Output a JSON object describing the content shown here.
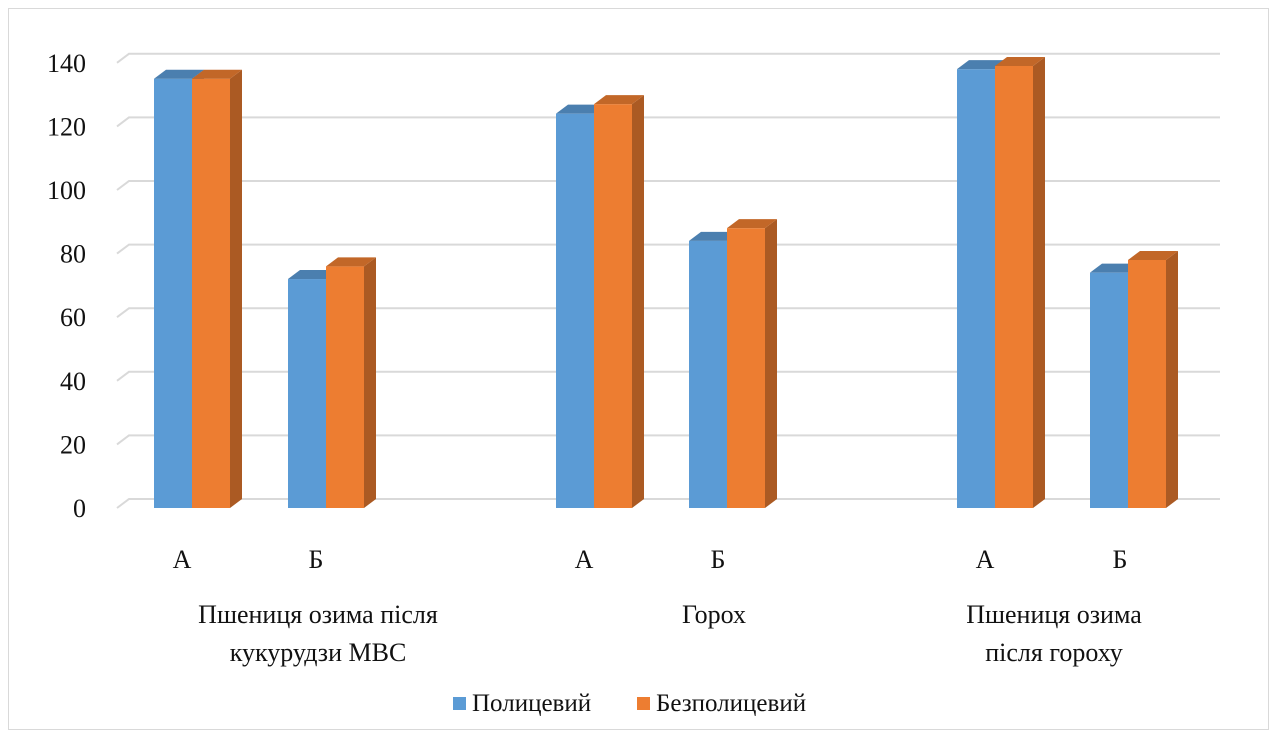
{
  "chart_data": {
    "type": "bar",
    "style": "3d-clustered-column",
    "groups": [
      {
        "label_lines": [
          "Пшениця озима після",
          "кукурудзи МВС"
        ],
        "categories": [
          "А",
          "Б"
        ]
      },
      {
        "label_lines": [
          "Горох"
        ],
        "categories": [
          "А",
          "Б"
        ]
      },
      {
        "label_lines": [
          "Пшениця озима",
          "після гороху"
        ],
        "categories": [
          "А",
          "Б"
        ]
      }
    ],
    "series": [
      {
        "name": "Полицевий",
        "color": "#5b9bd5",
        "values": [
          135,
          72,
          124,
          84,
          138,
          74
        ]
      },
      {
        "name": "Безполицевий",
        "color": "#ed7d31",
        "values": [
          135,
          76,
          127,
          88,
          139,
          78
        ]
      }
    ],
    "ylim": [
      0,
      140
    ],
    "yticks": [
      0,
      20,
      40,
      60,
      80,
      100,
      120,
      140
    ],
    "grid": true,
    "legend_position": "bottom"
  }
}
